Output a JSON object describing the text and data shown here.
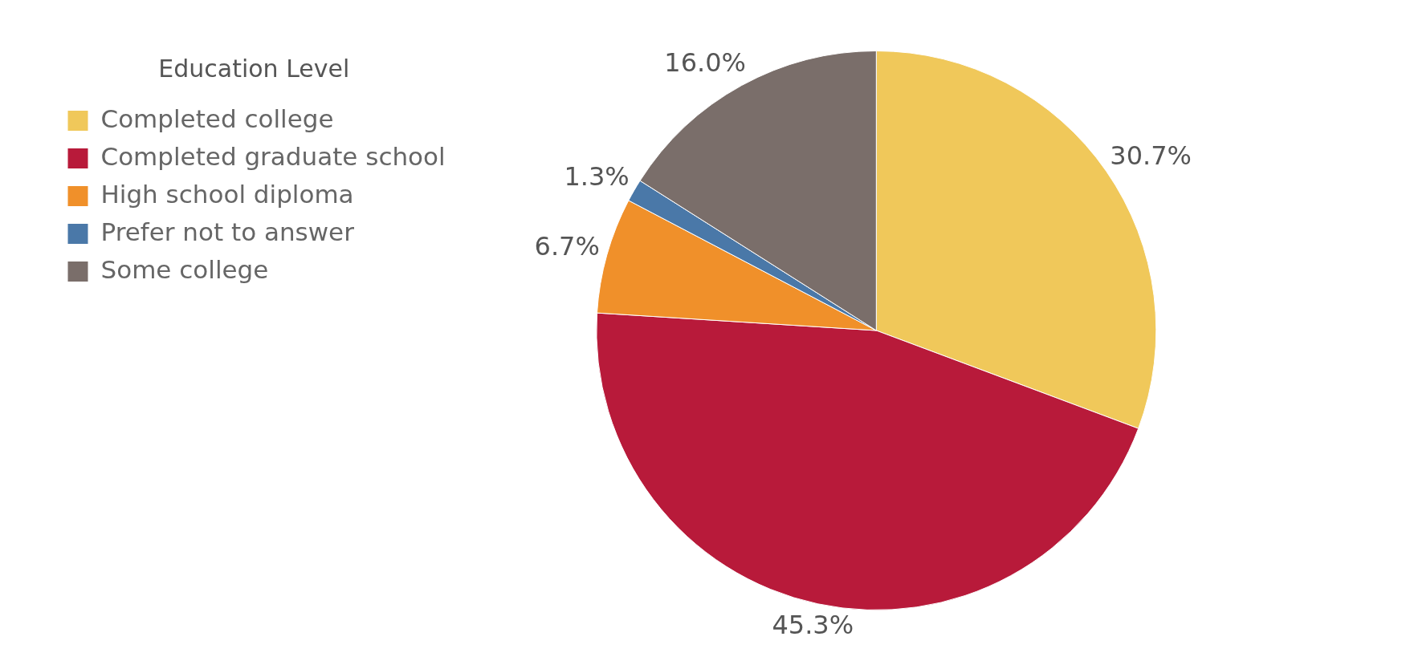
{
  "chart_data": {
    "type": "pie",
    "legend_title": "Education Level",
    "legend": "top left",
    "categories": [
      "Completed college",
      "Completed graduate school",
      "High school diploma",
      "Prefer not to answer",
      "Some college"
    ],
    "values": [
      30.7,
      45.3,
      6.7,
      1.3,
      16.0
    ],
    "colors": [
      "#f0c85a",
      "#b81a3a",
      "#f0902a",
      "#4a78a8",
      "#7a6e6a"
    ],
    "value_labels": [
      "30.7%",
      "45.3%",
      "6.7%",
      "1.3%",
      "16.0%"
    ]
  }
}
